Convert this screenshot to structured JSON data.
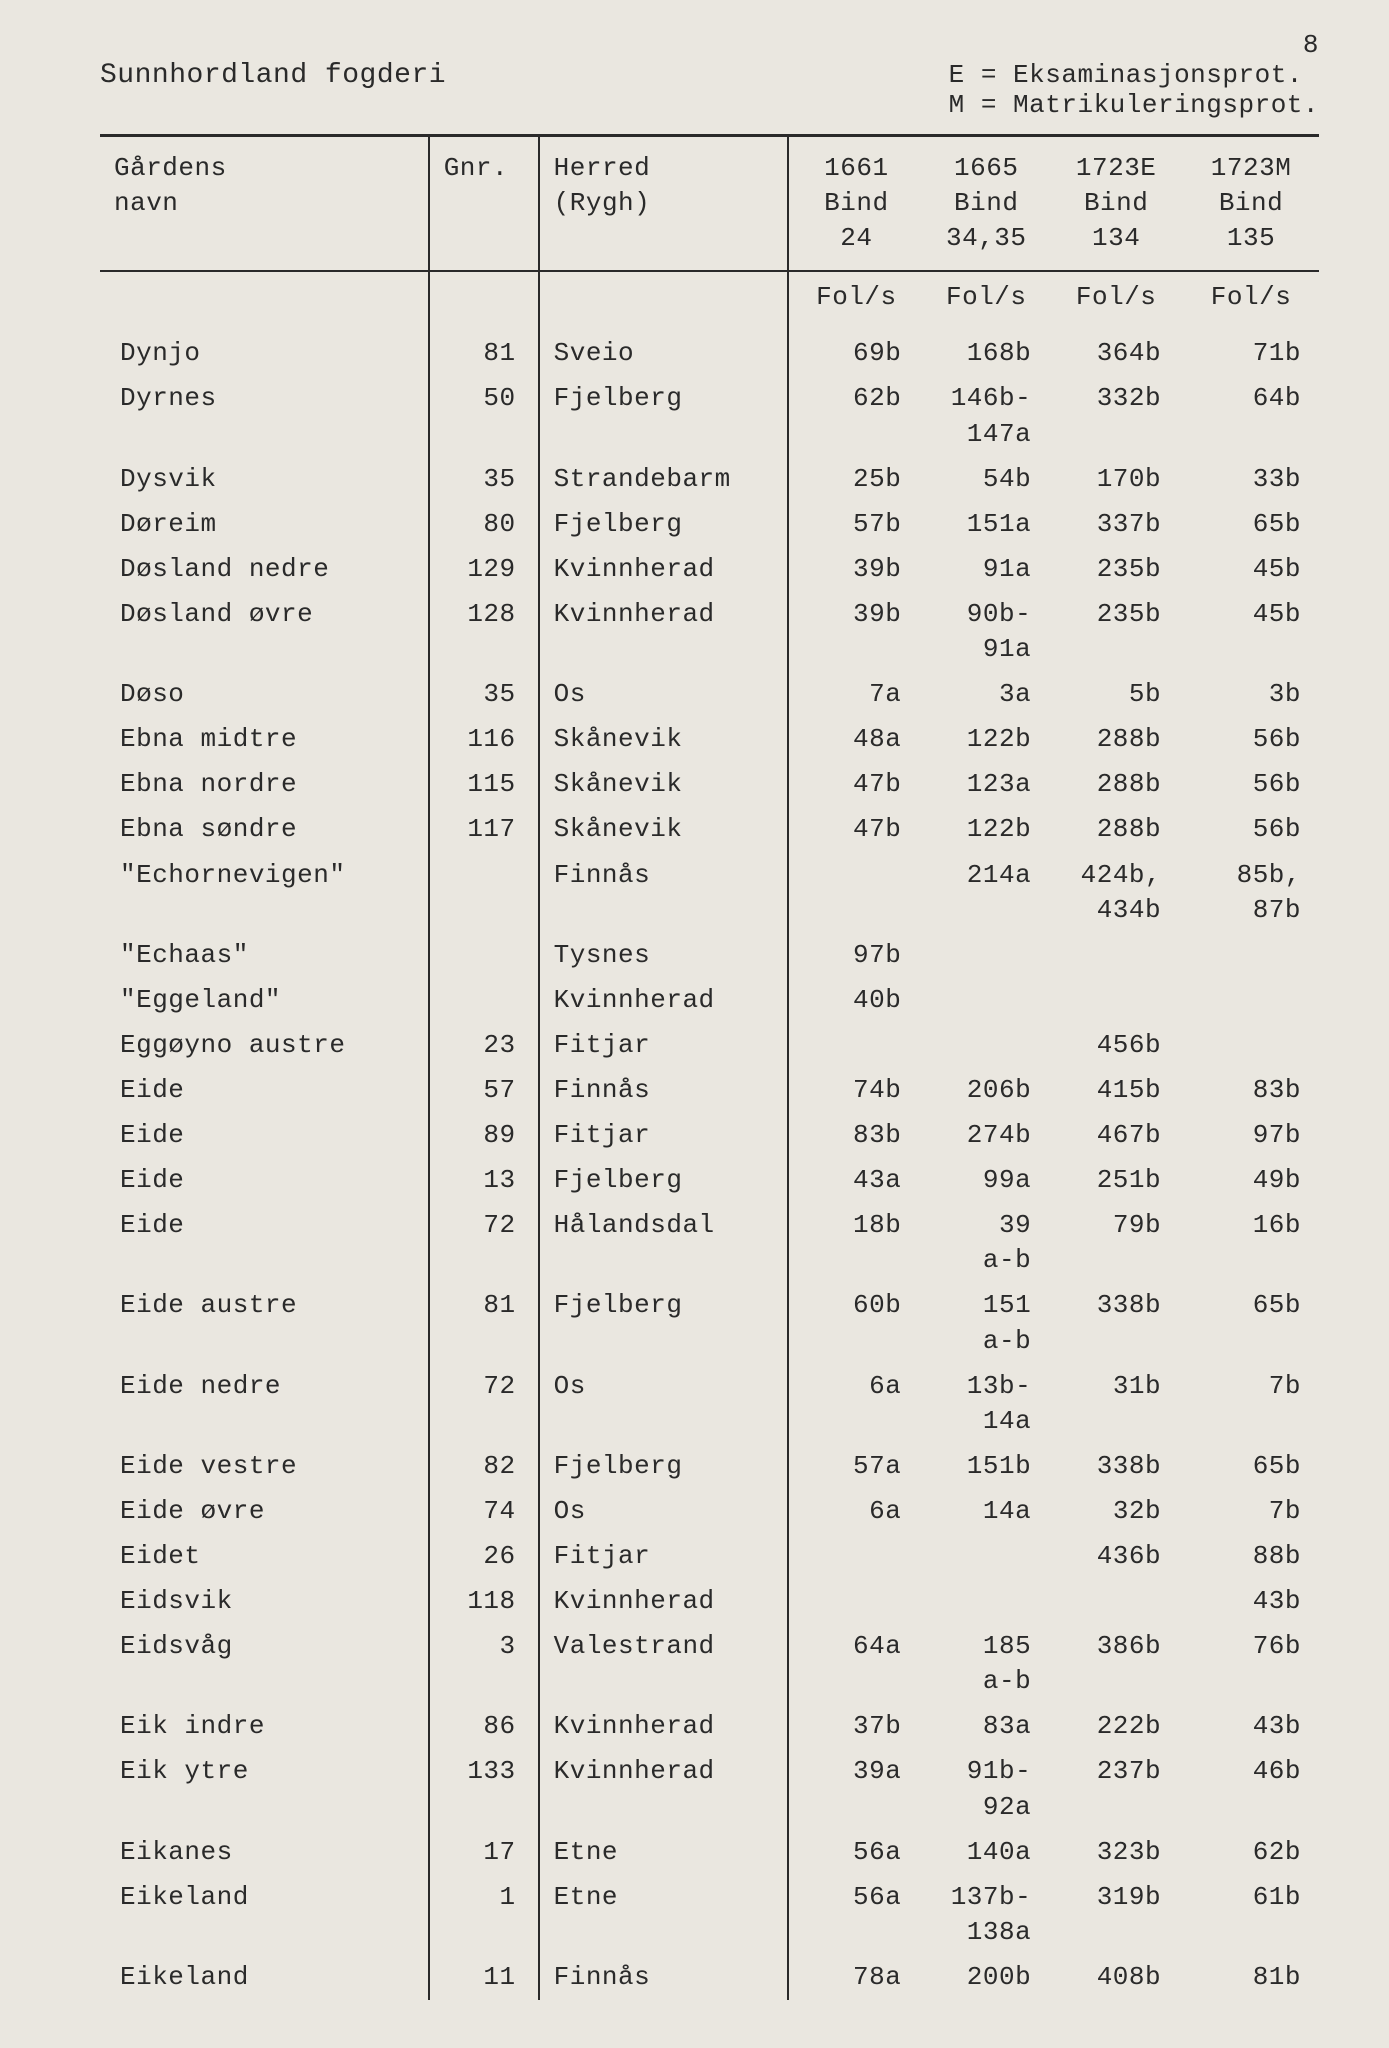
{
  "page_number": "8",
  "header": {
    "title": "Sunnhordland fogderi",
    "legend_line1": "E = Eksaminasjonsprot.",
    "legend_line2": "M = Matrikuleringsprot."
  },
  "columns": {
    "name": {
      "line1": "Gårdens",
      "line2": "navn",
      "line3": ""
    },
    "gnr": {
      "line1": "Gnr.",
      "line2": "",
      "line3": ""
    },
    "herred": {
      "line1": "Herred",
      "line2": "(Rygh)",
      "line3": ""
    },
    "y1": {
      "line1": "1661",
      "line2": "Bind",
      "line3": "24"
    },
    "y2": {
      "line1": "1665",
      "line2": "Bind",
      "line3": "34,35"
    },
    "y3": {
      "line1": "1723E",
      "line2": "Bind",
      "line3": "134"
    },
    "y4": {
      "line1": "1723M",
      "line2": "Bind",
      "line3": "135"
    }
  },
  "subhead": {
    "y1": "Fol/s",
    "y2": "Fol/s",
    "y3": "Fol/s",
    "y4": "Fol/s"
  },
  "rows": [
    {
      "name": "Dynjo",
      "gnr": "81",
      "herred": "Sveio",
      "y1": "69b",
      "y2": "168b",
      "y3": "364b",
      "y4": "71b"
    },
    {
      "name": "Dyrnes",
      "gnr": "50",
      "herred": "Fjelberg",
      "y1": "62b",
      "y2": "146b-\n147a",
      "y3": "332b",
      "y4": "64b"
    },
    {
      "name": "Dysvik",
      "gnr": "35",
      "herred": "Strandebarm",
      "y1": "25b",
      "y2": "54b",
      "y3": "170b",
      "y4": "33b"
    },
    {
      "name": "Døreim",
      "gnr": "80",
      "herred": "Fjelberg",
      "y1": "57b",
      "y2": "151a",
      "y3": "337b",
      "y4": "65b"
    },
    {
      "name": "Døsland nedre",
      "gnr": "129",
      "herred": "Kvinnherad",
      "y1": "39b",
      "y2": "91a",
      "y3": "235b",
      "y4": "45b"
    },
    {
      "name": "Døsland øvre",
      "gnr": "128",
      "herred": "Kvinnherad",
      "y1": "39b",
      "y2": "90b-\n91a",
      "y3": "235b",
      "y4": "45b"
    },
    {
      "name": "Døso",
      "gnr": "35",
      "herred": "Os",
      "y1": "7a",
      "y2": "3a",
      "y3": "5b",
      "y4": "3b"
    },
    {
      "name": "Ebna midtre",
      "gnr": "116",
      "herred": "Skånevik",
      "y1": "48a",
      "y2": "122b",
      "y3": "288b",
      "y4": "56b"
    },
    {
      "name": "Ebna nordre",
      "gnr": "115",
      "herred": "Skånevik",
      "y1": "47b",
      "y2": "123a",
      "y3": "288b",
      "y4": "56b"
    },
    {
      "name": "Ebna søndre",
      "gnr": "117",
      "herred": "Skånevik",
      "y1": "47b",
      "y2": "122b",
      "y3": "288b",
      "y4": "56b"
    },
    {
      "name": "\"Echornevigen\"",
      "gnr": "",
      "herred": "Finnås",
      "y1": "",
      "y2": "214a",
      "y3": "424b,\n434b",
      "y4": "85b,\n87b"
    },
    {
      "name": "\"Echaas\"",
      "gnr": "",
      "herred": "Tysnes",
      "y1": "97b",
      "y2": "",
      "y3": "",
      "y4": ""
    },
    {
      "name": "\"Eggeland\"",
      "gnr": "",
      "herred": "Kvinnherad",
      "y1": "40b",
      "y2": "",
      "y3": "",
      "y4": ""
    },
    {
      "name": "Eggøyno austre",
      "gnr": "23",
      "herred": "Fitjar",
      "y1": "",
      "y2": "",
      "y3": "456b",
      "y4": ""
    },
    {
      "name": "Eide",
      "gnr": "57",
      "herred": "Finnås",
      "y1": "74b",
      "y2": "206b",
      "y3": "415b",
      "y4": "83b"
    },
    {
      "name": "Eide",
      "gnr": "89",
      "herred": "Fitjar",
      "y1": "83b",
      "y2": "274b",
      "y3": "467b",
      "y4": "97b"
    },
    {
      "name": "Eide",
      "gnr": "13",
      "herred": "Fjelberg",
      "y1": "43a",
      "y2": "99a",
      "y3": "251b",
      "y4": "49b"
    },
    {
      "name": "Eide",
      "gnr": "72",
      "herred": "Hålandsdal",
      "y1": "18b",
      "y2": "39\na-b",
      "y3": "79b",
      "y4": "16b"
    },
    {
      "name": "Eide austre",
      "gnr": "81",
      "herred": "Fjelberg",
      "y1": "60b",
      "y2": "151\na-b",
      "y3": "338b",
      "y4": "65b"
    },
    {
      "name": "Eide nedre",
      "gnr": "72",
      "herred": "Os",
      "y1": "6a",
      "y2": "13b-\n14a",
      "y3": "31b",
      "y4": "7b"
    },
    {
      "name": "Eide vestre",
      "gnr": "82",
      "herred": "Fjelberg",
      "y1": "57a",
      "y2": "151b",
      "y3": "338b",
      "y4": "65b"
    },
    {
      "name": "Eide øvre",
      "gnr": "74",
      "herred": "Os",
      "y1": "6a",
      "y2": "14a",
      "y3": "32b",
      "y4": "7b"
    },
    {
      "name": "Eidet",
      "gnr": "26",
      "herred": "Fitjar",
      "y1": "",
      "y2": "",
      "y3": "436b",
      "y4": "88b"
    },
    {
      "name": "Eidsvik",
      "gnr": "118",
      "herred": "Kvinnherad",
      "y1": "",
      "y2": "",
      "y3": "",
      "y4": "43b"
    },
    {
      "name": "Eidsvåg",
      "gnr": "3",
      "herred": "Valestrand",
      "y1": "64a",
      "y2": "185\na-b",
      "y3": "386b",
      "y4": "76b"
    },
    {
      "name": "Eik indre",
      "gnr": "86",
      "herred": "Kvinnherad",
      "y1": "37b",
      "y2": "83a",
      "y3": "222b",
      "y4": "43b"
    },
    {
      "name": "Eik ytre",
      "gnr": "133",
      "herred": "Kvinnherad",
      "y1": "39a",
      "y2": "91b-\n92a",
      "y3": "237b",
      "y4": "46b"
    },
    {
      "name": "Eikanes",
      "gnr": "17",
      "herred": "Etne",
      "y1": "56a",
      "y2": "140a",
      "y3": "323b",
      "y4": "62b"
    },
    {
      "name": "Eikeland",
      "gnr": "1",
      "herred": "Etne",
      "y1": "56a",
      "y2": "137b-\n138a",
      "y3": "319b",
      "y4": "61b"
    },
    {
      "name": "Eikeland",
      "gnr": "11",
      "herred": "Finnås",
      "y1": "78a",
      "y2": "200b",
      "y3": "408b",
      "y4": "81b"
    }
  ]
}
